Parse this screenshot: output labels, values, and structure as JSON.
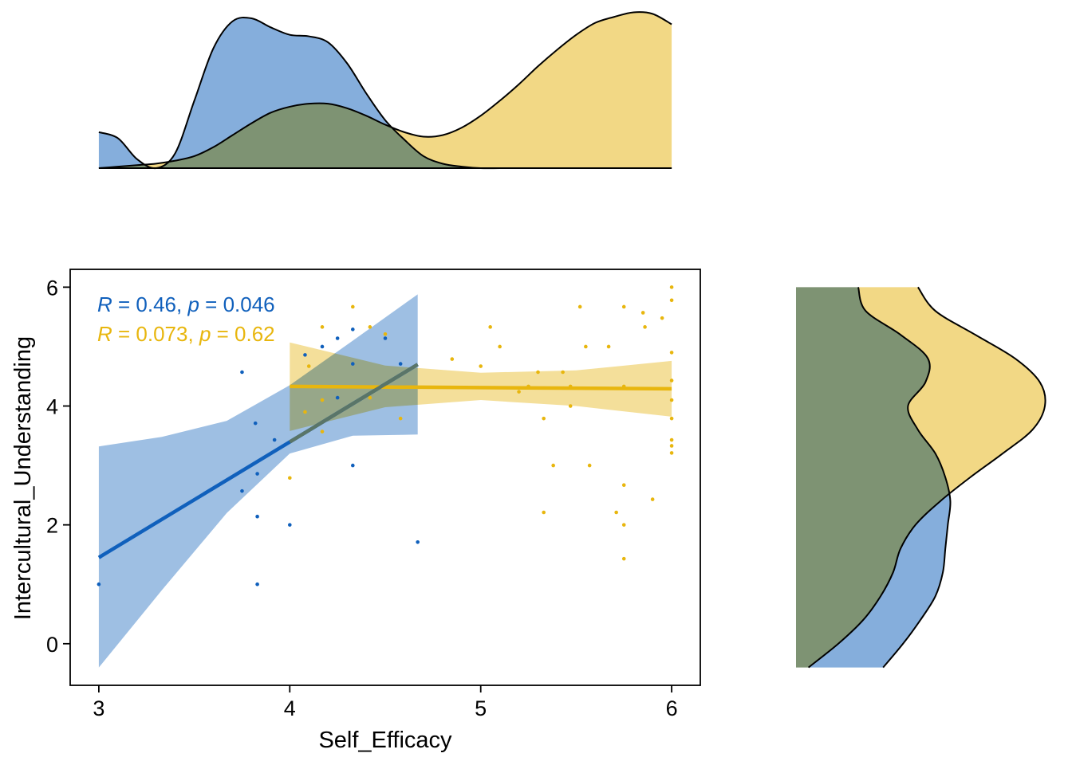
{
  "chart_data": {
    "type": "scatter",
    "xlabel": "Self_Efficacy",
    "ylabel": "Intercultural_Understanding",
    "xlim": [
      2.85,
      6.15
    ],
    "ylim": [
      -0.7,
      6.3
    ],
    "xticks": [
      3,
      4,
      5,
      6
    ],
    "yticks": [
      0,
      2,
      4,
      6
    ],
    "xtick_labels": [
      "3",
      "4",
      "5",
      "6"
    ],
    "ytick_labels": [
      "0",
      "2",
      "4",
      "6"
    ],
    "grid": false,
    "colors": {
      "blue": "#1060bc",
      "gold": "#e8b60e",
      "blue_fill": "#6a9cd4",
      "gold_fill": "#efd06a",
      "overlap_fill": "#b8b270"
    },
    "annotations": [
      {
        "series": "blue",
        "r_symbol": "R",
        "r_text": " = 0.46, ",
        "p_symbol": "p",
        "p_text": " = 0.046"
      },
      {
        "series": "gold",
        "r_symbol": "R",
        "r_text": " = 0.073, ",
        "p_symbol": "p",
        "p_text": " = 0.62"
      }
    ],
    "series": [
      {
        "color_key": "blue",
        "fit": {
          "x": [
            3.0,
            4.67
          ],
          "y": [
            1.45,
            4.7
          ]
        },
        "band": {
          "x": [
            3.0,
            3.33,
            3.67,
            4.0,
            4.33,
            4.67
          ],
          "lower": [
            -0.4,
            0.9,
            2.2,
            3.2,
            3.5,
            3.52
          ],
          "upper": [
            3.32,
            3.48,
            3.75,
            4.35,
            5.1,
            5.88
          ]
        },
        "points": [
          [
            3.0,
            1.0
          ],
          [
            3.75,
            4.57
          ],
          [
            3.75,
            2.57
          ],
          [
            3.82,
            3.71
          ],
          [
            3.83,
            2.86
          ],
          [
            3.83,
            2.14
          ],
          [
            3.83,
            1.0
          ],
          [
            3.92,
            3.43
          ],
          [
            4.0,
            2.0
          ],
          [
            4.08,
            4.86
          ],
          [
            4.17,
            5.0
          ],
          [
            4.25,
            5.14
          ],
          [
            4.25,
            4.14
          ],
          [
            4.33,
            5.29
          ],
          [
            4.33,
            4.71
          ],
          [
            4.33,
            3.0
          ],
          [
            4.5,
            5.14
          ],
          [
            4.58,
            4.71
          ],
          [
            4.67,
            1.71
          ]
        ]
      },
      {
        "color_key": "gold",
        "fit": {
          "x": [
            4.0,
            6.0
          ],
          "y": [
            4.33,
            4.29
          ]
        },
        "band": {
          "x": [
            4.0,
            4.5,
            5.0,
            5.5,
            6.0
          ],
          "lower": [
            3.58,
            3.98,
            4.1,
            4.0,
            3.82
          ],
          "upper": [
            5.07,
            4.68,
            4.56,
            4.6,
            4.76
          ]
        },
        "points": [
          [
            4.0,
            2.79
          ],
          [
            4.08,
            3.9
          ],
          [
            4.1,
            4.67
          ],
          [
            4.17,
            5.33
          ],
          [
            4.17,
            4.1
          ],
          [
            4.17,
            3.57
          ],
          [
            4.33,
            5.67
          ],
          [
            4.42,
            5.33
          ],
          [
            4.42,
            4.14
          ],
          [
            4.5,
            5.21
          ],
          [
            4.58,
            3.79
          ],
          [
            4.85,
            4.79
          ],
          [
            5.0,
            4.67
          ],
          [
            5.05,
            5.33
          ],
          [
            5.1,
            5.0
          ],
          [
            5.2,
            4.24
          ],
          [
            5.25,
            4.33
          ],
          [
            5.3,
            4.57
          ],
          [
            5.33,
            3.79
          ],
          [
            5.33,
            2.21
          ],
          [
            5.38,
            3.0
          ],
          [
            5.43,
            4.57
          ],
          [
            5.47,
            4.33
          ],
          [
            5.47,
            4.0
          ],
          [
            5.52,
            5.67
          ],
          [
            5.55,
            5.0
          ],
          [
            5.57,
            3.0
          ],
          [
            5.67,
            5.0
          ],
          [
            5.71,
            2.21
          ],
          [
            5.75,
            5.67
          ],
          [
            5.75,
            4.33
          ],
          [
            5.75,
            2.67
          ],
          [
            5.75,
            2.0
          ],
          [
            5.75,
            1.43
          ],
          [
            5.85,
            5.57
          ],
          [
            5.86,
            5.33
          ],
          [
            5.9,
            2.43
          ],
          [
            5.95,
            5.48
          ],
          [
            6.0,
            6.0
          ],
          [
            6.0,
            5.78
          ],
          [
            6.0,
            4.9
          ],
          [
            6.0,
            4.43
          ],
          [
            6.0,
            4.1
          ],
          [
            6.0,
            3.79
          ],
          [
            6.0,
            3.43
          ],
          [
            6.0,
            3.33
          ],
          [
            6.0,
            3.21
          ]
        ]
      }
    ],
    "marginal_x": {
      "x": [
        3.0,
        3.1,
        3.2,
        3.3,
        3.4,
        3.5,
        3.6,
        3.7,
        3.8,
        3.9,
        4.0,
        4.1,
        4.2,
        4.3,
        4.4,
        4.5,
        4.6,
        4.7,
        4.8,
        4.9,
        5.0,
        5.1,
        5.2,
        5.3,
        5.4,
        5.5,
        5.6,
        5.7,
        5.8,
        5.9,
        6.0
      ],
      "blue": [
        0.24,
        0.2,
        0.06,
        0.0,
        0.1,
        0.45,
        0.8,
        0.98,
        1.0,
        0.94,
        0.89,
        0.88,
        0.84,
        0.7,
        0.5,
        0.32,
        0.19,
        0.08,
        0.03,
        0.01,
        0.0,
        0.0,
        0.0,
        0.0,
        0.0,
        0.0,
        0.0,
        0.0,
        0.0,
        0.0,
        0.0
      ],
      "gold": [
        0.0,
        0.01,
        0.02,
        0.03,
        0.05,
        0.08,
        0.14,
        0.22,
        0.3,
        0.37,
        0.41,
        0.43,
        0.43,
        0.4,
        0.35,
        0.29,
        0.24,
        0.21,
        0.22,
        0.27,
        0.35,
        0.45,
        0.56,
        0.68,
        0.79,
        0.89,
        0.97,
        1.01,
        1.04,
        1.03,
        0.96
      ]
    },
    "marginal_y": {
      "y": [
        -0.4,
        0.0,
        0.4,
        0.8,
        1.2,
        1.6,
        2.0,
        2.4,
        2.8,
        3.2,
        3.6,
        4.0,
        4.4,
        4.8,
        5.2,
        5.6,
        6.0
      ],
      "blue": [
        0.35,
        0.43,
        0.5,
        0.56,
        0.59,
        0.6,
        0.61,
        0.62,
        0.6,
        0.56,
        0.49,
        0.45,
        0.52,
        0.53,
        0.42,
        0.28,
        0.25
      ],
      "gold": [
        0.05,
        0.17,
        0.27,
        0.34,
        0.39,
        0.42,
        0.48,
        0.58,
        0.7,
        0.83,
        0.95,
        1.0,
        0.98,
        0.88,
        0.72,
        0.56,
        0.49
      ]
    }
  }
}
